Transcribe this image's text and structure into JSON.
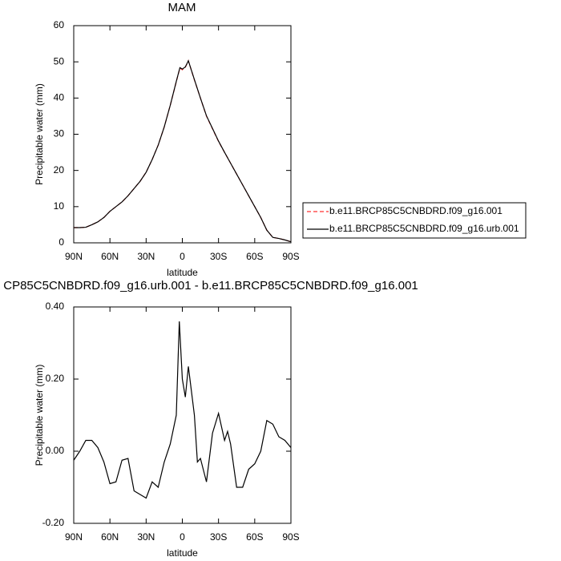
{
  "chart_data": [
    {
      "type": "line",
      "title": "MAM",
      "x_label": "latitude",
      "y_label": "Precipitable water (mm)",
      "x": [
        90,
        85,
        80,
        75,
        70,
        65,
        60,
        55,
        50,
        45,
        40,
        35,
        30,
        25,
        20,
        15,
        10,
        5,
        2,
        0,
        -2.5,
        -5,
        -10,
        -15,
        -20,
        -25,
        -30,
        -35,
        -40,
        -45,
        -50,
        -55,
        -60,
        -65,
        -70,
        -75,
        -80,
        -85,
        -90
      ],
      "series": [
        {
          "name": "b.e11.BRCP85C5CNBDRD.f09_g16.001",
          "color": "#ff3030",
          "dash": true,
          "values": [
            4.2,
            4.2,
            4.3,
            5.0,
            5.8,
            7.0,
            8.7,
            10.0,
            11.3,
            13.0,
            15.0,
            17.0,
            19.5,
            23.0,
            27.0,
            32.0,
            38.0,
            44.5,
            48.3,
            47.8,
            48.5,
            50.3,
            45.0,
            40.0,
            35.0,
            31.5,
            28.0,
            25.0,
            22.0,
            19.0,
            16.0,
            13.0,
            10.0,
            7.0,
            3.5,
            1.5,
            1.2,
            0.8,
            0.3
          ]
        },
        {
          "name": "b.e11.BRCP85C5CNBDRD.f09_g16.urb.001",
          "color": "#000000",
          "dash": false,
          "values": [
            4.2,
            4.2,
            4.3,
            5.0,
            5.8,
            7.0,
            8.7,
            10.0,
            11.3,
            13.0,
            15.0,
            17.0,
            19.5,
            23.0,
            27.0,
            32.0,
            38.0,
            44.6,
            48.4,
            48.0,
            48.6,
            50.3,
            45.1,
            40.0,
            35.1,
            31.6,
            28.1,
            25.0,
            22.0,
            19.0,
            16.0,
            13.0,
            10.0,
            7.0,
            3.5,
            1.5,
            1.2,
            0.8,
            0.3
          ]
        }
      ],
      "xlim": [
        90,
        -90
      ],
      "xticks": [
        {
          "value": 90,
          "label": "90N"
        },
        {
          "value": 60,
          "label": "60N"
        },
        {
          "value": 30,
          "label": "30N"
        },
        0,
        {
          "value": -30,
          "label": "30S"
        },
        {
          "value": -60,
          "label": "60S"
        },
        {
          "value": -90,
          "label": "90S"
        }
      ],
      "ylim": [
        0,
        60
      ],
      "yticks": [
        0,
        10,
        20,
        30,
        40,
        50,
        60
      ]
    },
    {
      "type": "line",
      "title": "CP85C5CNBDRD.f09_g16.urb.001 - b.e11.BRCP85C5CNBDRD.f09_g16.001",
      "x_label": "latitude",
      "y_label": "Precipitable water (mm)",
      "x": [
        90,
        85,
        80,
        75,
        70,
        65,
        60,
        55,
        50,
        45,
        40,
        35,
        30,
        25,
        20,
        15,
        10,
        5,
        2.5,
        0,
        -2.5,
        -5,
        -10,
        -12.5,
        -15,
        -20,
        -25,
        -30,
        -35,
        -37.5,
        -40,
        -45,
        -50,
        -55,
        -60,
        -65,
        -70,
        -75,
        -80,
        -85,
        -90
      ],
      "series": [
        {
          "name": null,
          "color": "#000000",
          "dash": false,
          "values": [
            -0.025,
            0.0,
            0.03,
            0.03,
            0.01,
            -0.03,
            -0.09,
            -0.085,
            -0.025,
            -0.02,
            -0.11,
            -0.12,
            -0.13,
            -0.085,
            -0.1,
            -0.03,
            0.02,
            0.1,
            0.36,
            0.2,
            0.15,
            0.235,
            0.1,
            -0.03,
            -0.02,
            -0.085,
            0.05,
            0.105,
            0.03,
            0.055,
            0.02,
            -0.1,
            -0.1,
            -0.05,
            -0.035,
            0.0,
            0.085,
            0.075,
            0.04,
            0.03,
            0.01
          ]
        }
      ],
      "xlim": [
        90,
        -90
      ],
      "xticks": [
        {
          "value": 90,
          "label": "90N"
        },
        {
          "value": 60,
          "label": "60N"
        },
        {
          "value": 30,
          "label": "30N"
        },
        0,
        {
          "value": -30,
          "label": "30S"
        },
        {
          "value": -60,
          "label": "60S"
        },
        {
          "value": -90,
          "label": "90S"
        }
      ],
      "ylim": [
        -0.2,
        0.4
      ],
      "yticks": [
        {
          "value": -0.2,
          "label": "-0.20"
        },
        {
          "value": 0,
          "label": "0.00"
        },
        {
          "value": 0.2,
          "label": "0.20"
        },
        {
          "value": 0.4,
          "label": "0.40"
        }
      ]
    }
  ]
}
